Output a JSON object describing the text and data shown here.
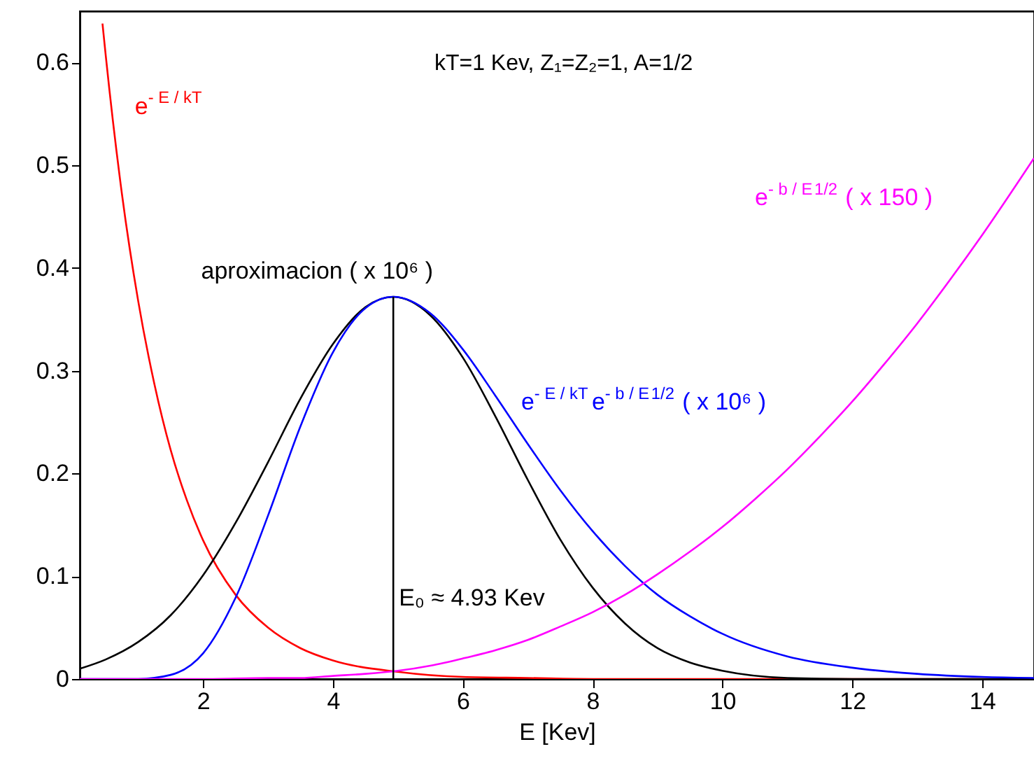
{
  "chart_data": {
    "type": "line",
    "xlabel": "E [Kev]",
    "xlim": [
      0.1,
      14.8
    ],
    "ylim": [
      0,
      0.65
    ],
    "xticks": [
      2,
      4,
      6,
      8,
      10,
      12,
      14
    ],
    "yticks": [
      0,
      0.1,
      0.2,
      0.3,
      0.4,
      0.5,
      0.6
    ],
    "grid": false,
    "marker": "none",
    "line_style": "solid",
    "annotations": [
      "kT=1 Kev, Z₁=Z₂=1, A=1/2",
      {
        "text": "E₀ ≈ 4.93 Kev",
        "x": 4.93,
        "y": 0.08
      }
    ],
    "series": [
      {
        "name": "e$^{- E / kT}$",
        "color": "#ff0000",
        "x": [
          0.45,
          0.5,
          0.75,
          1,
          1.25,
          1.5,
          1.75,
          2,
          2.5,
          3,
          3.5,
          4,
          5,
          6,
          7,
          8,
          10,
          14.8
        ],
        "values": [
          0.638,
          0.607,
          0.472,
          0.368,
          0.287,
          0.223,
          0.174,
          0.135,
          0.082,
          0.05,
          0.03,
          0.018,
          0.007,
          0.002,
          0.001,
          0,
          0,
          0
        ]
      },
      {
        "name": "aproximacion ( x 10⁶ )",
        "color": "#000000",
        "x": [
          0.1,
          0.5,
          1,
          1.5,
          2,
          2.5,
          3,
          3.5,
          4,
          4.5,
          4.93,
          5.5,
          6,
          6.5,
          7,
          7.5,
          8,
          8.5,
          9,
          9.5,
          10,
          11,
          12,
          13,
          14.8
        ],
        "values": [
          0.01,
          0.019,
          0.036,
          0.062,
          0.101,
          0.152,
          0.211,
          0.273,
          0.326,
          0.362,
          0.372,
          0.354,
          0.313,
          0.256,
          0.194,
          0.136,
          0.089,
          0.054,
          0.03,
          0.016,
          0.008,
          0.001,
          0,
          0,
          0
        ]
      },
      {
        "name": "e$^{- E / kT}$e$^{- b / E}$$^{1/2}$ ( x 10⁶ )",
        "color": "#0000ff",
        "x": [
          0.1,
          1,
          1.5,
          2,
          2.5,
          3,
          3.5,
          4,
          4.5,
          4.93,
          5.5,
          6,
          6.5,
          7,
          7.5,
          8,
          8.5,
          9,
          9.5,
          10,
          11,
          12,
          13,
          14,
          14.8
        ],
        "values": [
          0,
          0,
          0.004,
          0.025,
          0.079,
          0.159,
          0.246,
          0.318,
          0.361,
          0.372,
          0.356,
          0.321,
          0.276,
          0.229,
          0.184,
          0.144,
          0.11,
          0.082,
          0.061,
          0.044,
          0.022,
          0.011,
          0.005,
          0.002,
          0.001
        ]
      },
      {
        "name": "e$^{- b / E}$$^{1/2}$ ( x 150 )",
        "color": "#ff00ff",
        "x": [
          0.1,
          2,
          3,
          3.5,
          4,
          4.5,
          5,
          5.5,
          6,
          6.5,
          7,
          7.5,
          8,
          8.5,
          9,
          9.5,
          10,
          10.5,
          11,
          11.5,
          12,
          12.5,
          13,
          13.5,
          14,
          14.8
        ],
        "values": [
          0,
          0,
          0.001,
          0.001,
          0.003,
          0.005,
          0.008,
          0.013,
          0.02,
          0.028,
          0.038,
          0.051,
          0.065,
          0.082,
          0.102,
          0.124,
          0.148,
          0.175,
          0.204,
          0.236,
          0.27,
          0.307,
          0.346,
          0.388,
          0.432,
          0.507
        ]
      },
      {
        "color": "#000000",
        "x": [
          4.93,
          4.93
        ],
        "values": [
          0,
          0.372
        ]
      }
    ]
  }
}
